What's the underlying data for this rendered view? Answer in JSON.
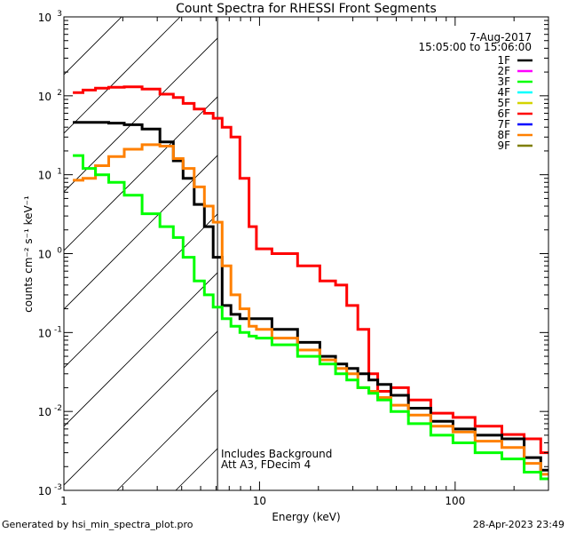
{
  "chart_data": {
    "type": "line",
    "title": "Count Spectra for RHESSI Front Segments",
    "xlabel": "Energy (keV)",
    "ylabel": "counts cm⁻² s⁻¹ keV⁻¹",
    "xscale": "log",
    "yscale": "log",
    "xlim": [
      1,
      300
    ],
    "ylim": [
      0.001,
      1000
    ],
    "x_tick_labels": [
      "1",
      "10",
      "100"
    ],
    "x_ticks": [
      1,
      10,
      100
    ],
    "y_ticks": [
      0.001,
      0.01,
      0.1,
      1,
      10,
      100,
      1000
    ],
    "y_tick_mantissa": "10",
    "y_tick_exponents": [
      "-3",
      "-2",
      "-1",
      "0",
      "1",
      "2",
      "3"
    ],
    "date": "7-Aug-2017",
    "time_range": "15:05:00 to 15:06:00",
    "annotation_lines": [
      "Includes Background",
      "Att A3, FDecim 4"
    ],
    "hatched_below_energy": 6.1,
    "legend_position": "top-right",
    "legend": [
      {
        "name": "1F",
        "color": "#000000"
      },
      {
        "name": "2F",
        "color": "#ff00ff"
      },
      {
        "name": "3F",
        "color": "#00ff00"
      },
      {
        "name": "4F",
        "color": "#00ffff"
      },
      {
        "name": "5F",
        "color": "#d4d400"
      },
      {
        "name": "6F",
        "color": "#ff0000"
      },
      {
        "name": "7F",
        "color": "#0000ff"
      },
      {
        "name": "8F",
        "color": "#ff8000"
      },
      {
        "name": "9F",
        "color": "#7f7f00"
      }
    ],
    "x": [
      1.17,
      1.34,
      1.57,
      1.83,
      2.26,
      2.79,
      3.44,
      3.82,
      4.33,
      4.96,
      5.51,
      6.1,
      6.8,
      7.5,
      8.4,
      9.3,
      10,
      13.4,
      18.3,
      22.6,
      26.5,
      29.4,
      34.4,
      38.1,
      42.4,
      52,
      64,
      88,
      108,
      148,
      203,
      250,
      300
    ],
    "series": [
      {
        "name": "6F",
        "color": "#ff0000",
        "values": [
          110,
          118,
          125,
          128,
          130,
          122,
          105,
          95,
          80,
          68,
          60,
          52,
          40,
          30,
          9,
          2.2,
          1.15,
          1.0,
          0.7,
          0.45,
          0.4,
          0.22,
          0.11,
          0.03,
          0.018,
          0.02,
          0.014,
          0.0095,
          0.0084,
          0.0065,
          0.0051,
          0.0045,
          0.003
        ]
      },
      {
        "name": "1F",
        "color": "#000000",
        "values": [
          46,
          46,
          46,
          45,
          43,
          38,
          26,
          15,
          9,
          4.2,
          2.2,
          0.9,
          0.22,
          0.17,
          0.15,
          0.15,
          0.15,
          0.11,
          0.075,
          0.05,
          0.04,
          0.035,
          0.03,
          0.025,
          0.022,
          0.016,
          0.011,
          0.0075,
          0.006,
          0.005,
          0.0045,
          0.0026,
          0.0018
        ]
      },
      {
        "name": "8F",
        "color": "#ff8000",
        "values": [
          8.5,
          9,
          13,
          17,
          21,
          24,
          23,
          16,
          12,
          7,
          4,
          2.5,
          0.7,
          0.3,
          0.2,
          0.12,
          0.11,
          0.085,
          0.06,
          0.045,
          0.035,
          0.03,
          0.02,
          0.018,
          0.015,
          0.012,
          0.009,
          0.0065,
          0.0055,
          0.0042,
          0.0035,
          0.0022,
          0.0016
        ]
      },
      {
        "name": "3F",
        "color": "#00ff00",
        "values": [
          17.5,
          12,
          10,
          8,
          5.5,
          3.2,
          2.2,
          1.6,
          0.9,
          0.45,
          0.3,
          0.21,
          0.15,
          0.12,
          0.1,
          0.09,
          0.085,
          0.07,
          0.05,
          0.04,
          0.03,
          0.025,
          0.02,
          0.017,
          0.014,
          0.01,
          0.007,
          0.005,
          0.004,
          0.003,
          0.0025,
          0.0017,
          0.0014
        ]
      }
    ]
  },
  "footer": {
    "generated_by": "Generated by hsi_min_spectra_plot.pro",
    "timestamp": "28-Apr-2023 23:49"
  }
}
